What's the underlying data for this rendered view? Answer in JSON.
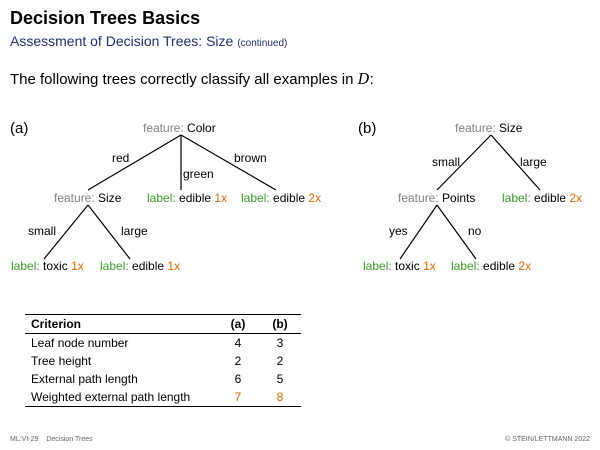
{
  "header": {
    "title": "Decision Trees Basics",
    "subtitle": "Assessment of Decision Trees: Size",
    "subtitle_note": "(continued)"
  },
  "lead": {
    "text": "The following trees correctly classify all examples in",
    "symbol": "D",
    "suffix": ":"
  },
  "tree_a": {
    "panel_label": "(a)",
    "root": {
      "prefix": "feature:",
      "value": "Color"
    },
    "edges": {
      "red": "red",
      "green": "green",
      "brown": "brown",
      "small": "small",
      "large": "large"
    },
    "size_node": {
      "prefix": "feature:",
      "value": "Size"
    },
    "leaf_green": {
      "prefix": "label:",
      "value": "edible",
      "count": "1x"
    },
    "leaf_brown": {
      "prefix": "label:",
      "value": "edible",
      "count": "2x"
    },
    "leaf_small": {
      "prefix": "label:",
      "value": "toxic",
      "count": "1x"
    },
    "leaf_large": {
      "prefix": "label:",
      "value": "edible",
      "count": "1x"
    }
  },
  "tree_b": {
    "panel_label": "(b)",
    "root": {
      "prefix": "feature:",
      "value": "Size"
    },
    "edges": {
      "small": "small",
      "large": "large",
      "yes": "yes",
      "no": "no"
    },
    "points_node": {
      "prefix": "feature:",
      "value": "Points"
    },
    "leaf_large": {
      "prefix": "label:",
      "value": "edible",
      "count": "2x"
    },
    "leaf_yes": {
      "prefix": "label:",
      "value": "toxic",
      "count": "1x"
    },
    "leaf_no": {
      "prefix": "label:",
      "value": "edible",
      "count": "2x"
    }
  },
  "table": {
    "headers": [
      "Criterion",
      "(a)",
      "(b)"
    ],
    "rows": [
      [
        "Leaf node number",
        "4",
        "3"
      ],
      [
        "Tree height",
        "2",
        "2"
      ],
      [
        "External path length",
        "6",
        "5"
      ],
      [
        "Weighted external path length",
        "7",
        "8"
      ]
    ]
  },
  "footer": {
    "left_code": "ML:VI-29",
    "left_title": "Decision Trees",
    "right": "© STEIN/LETTMANN 2022"
  },
  "colors": {
    "feature": "#808080",
    "label": "#3c9a2a",
    "count": "#e06a00",
    "subtitle": "#1f2f6f"
  }
}
